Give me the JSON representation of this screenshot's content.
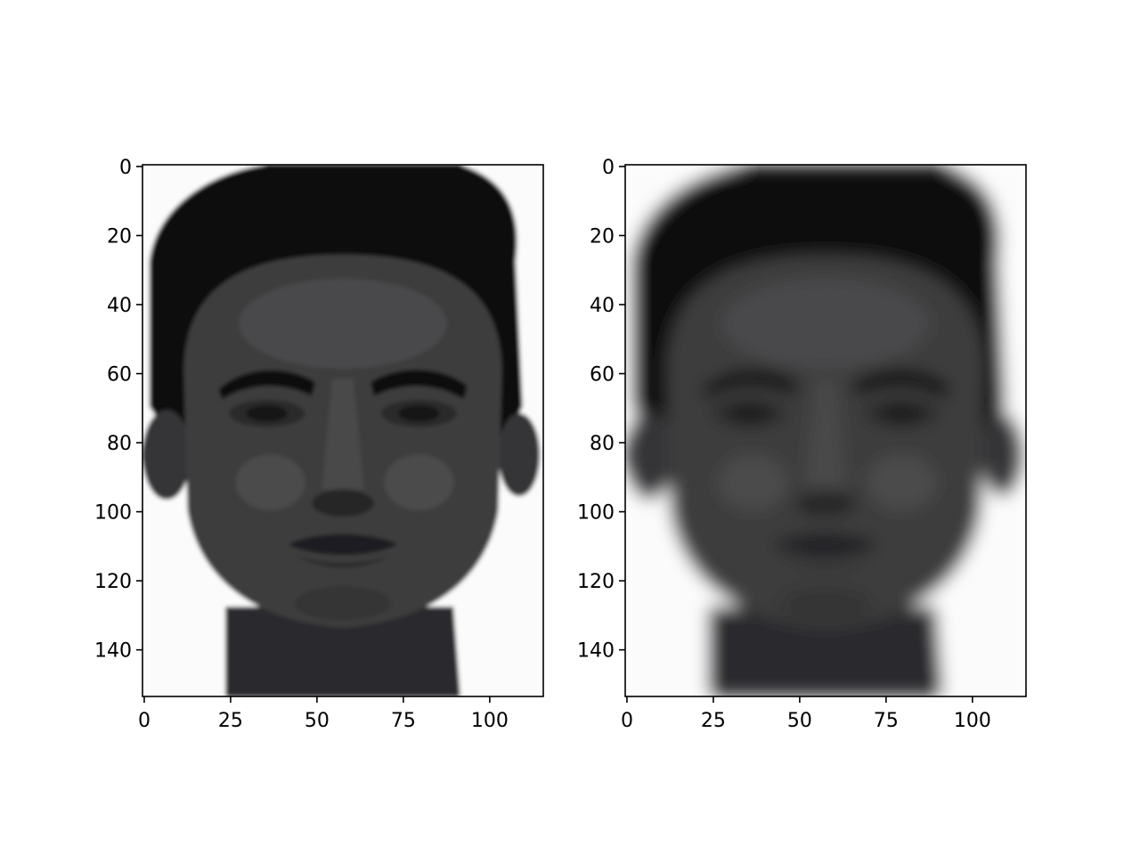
{
  "figure": {
    "panels": [
      {
        "id": "original",
        "image": "face-original",
        "x_range": [
          -0.5,
          115.5
        ],
        "y_range": [
          -0.5,
          153.5
        ],
        "y_inverted": true,
        "x_ticks": [
          "0",
          "25",
          "50",
          "75",
          "100"
        ],
        "x_tick_values": [
          0,
          25,
          50,
          75,
          100
        ],
        "y_ticks": [
          "0",
          "20",
          "40",
          "60",
          "80",
          "100",
          "120",
          "140"
        ],
        "y_tick_values": [
          0,
          20,
          40,
          60,
          80,
          100,
          120,
          140
        ],
        "image_blur": 0.6
      },
      {
        "id": "reconstruction",
        "image": "face-reconstruction",
        "x_range": [
          -0.5,
          115.5
        ],
        "y_range": [
          -0.5,
          153.5
        ],
        "y_inverted": true,
        "x_ticks": [
          "0",
          "25",
          "50",
          "75",
          "100"
        ],
        "x_tick_values": [
          0,
          25,
          50,
          75,
          100
        ],
        "y_ticks": [
          "0",
          "20",
          "40",
          "60",
          "80",
          "100",
          "120",
          "140"
        ],
        "y_tick_values": [
          0,
          20,
          40,
          60,
          80,
          100,
          120,
          140
        ],
        "image_blur": 2.4
      }
    ],
    "colors": {
      "background": "#ffffff",
      "hair": "#0c0c0e",
      "skin": "#3c3c3e",
      "skin_light": "#5a5a5c",
      "axes": "#000000"
    }
  }
}
